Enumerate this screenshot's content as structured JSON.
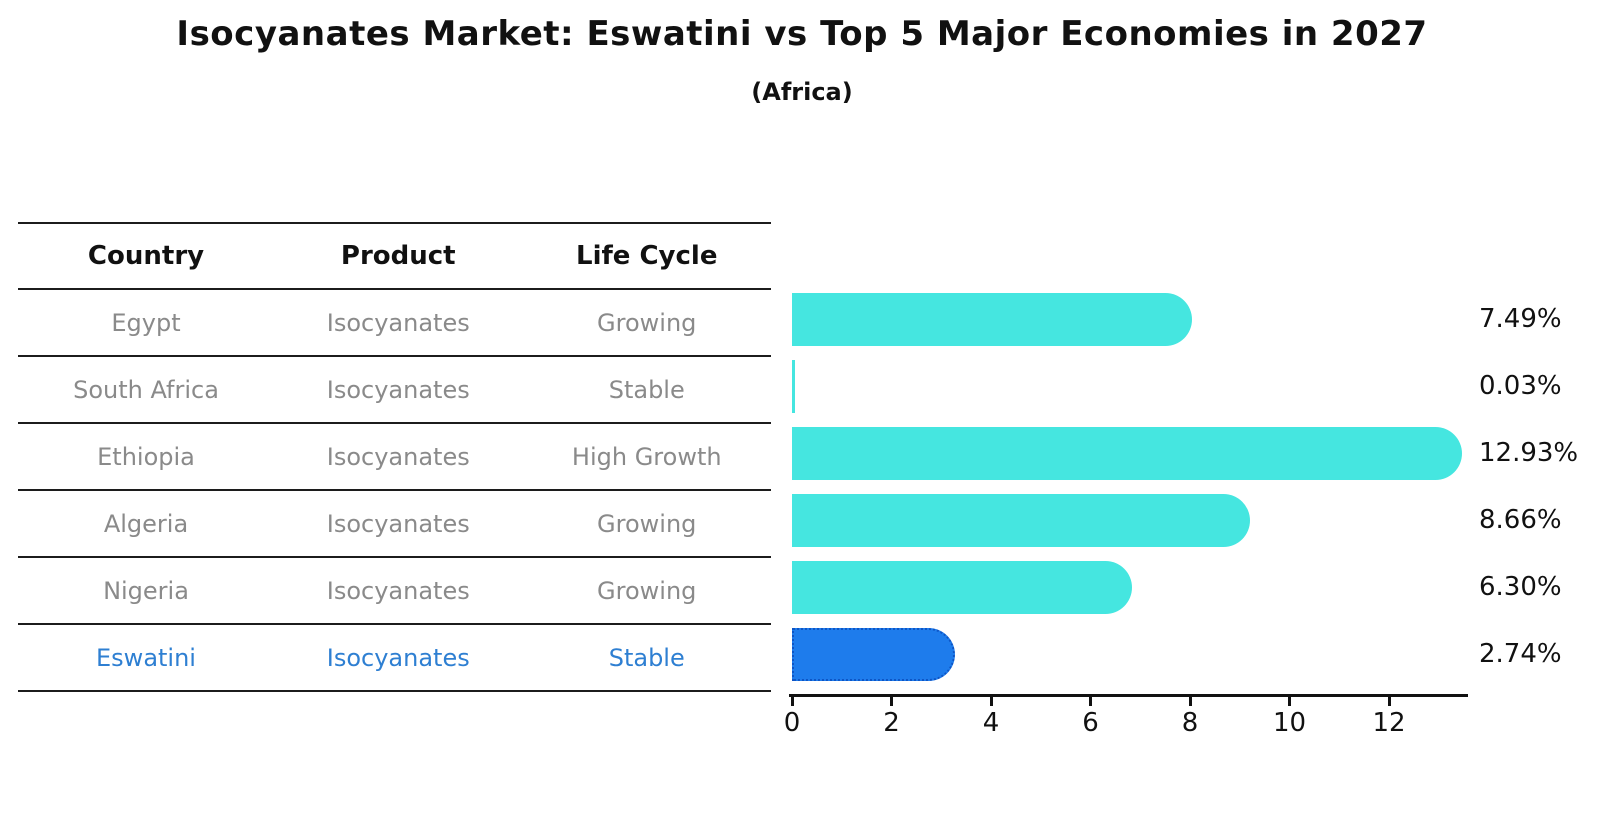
{
  "title": {
    "main": "Isocyanates Market: Eswatini vs Top 5 Major Economies in 2027",
    "sub": "(Africa)"
  },
  "table": {
    "headers": [
      "Country",
      "Product",
      "Life Cycle"
    ],
    "rows": [
      {
        "country": "Egypt",
        "product": "Isocyanates",
        "life_cycle": "Growing",
        "highlighted": false
      },
      {
        "country": "South Africa",
        "product": "Isocyanates",
        "life_cycle": "Stable",
        "highlighted": false
      },
      {
        "country": "Ethiopia",
        "product": "Isocyanates",
        "life_cycle": "High Growth",
        "highlighted": false
      },
      {
        "country": "Algeria",
        "product": "Isocyanates",
        "life_cycle": "Growing",
        "highlighted": false
      },
      {
        "country": "Nigeria",
        "product": "Isocyanates",
        "life_cycle": "Growing",
        "highlighted": false
      },
      {
        "country": "Eswatini",
        "product": "Isocyanates",
        "life_cycle": "Stable",
        "highlighted": true
      }
    ]
  },
  "chart_data": {
    "type": "bar",
    "orientation": "horizontal",
    "title": "Isocyanates Market: Eswatini vs Top 5 Major Economies in 2027",
    "subtitle": "(Africa)",
    "categories": [
      "Egypt",
      "South Africa",
      "Ethiopia",
      "Algeria",
      "Nigeria",
      "Eswatini"
    ],
    "values": [
      7.49,
      0.03,
      12.93,
      8.66,
      6.3,
      2.74
    ],
    "value_labels": [
      "7.49%",
      "0.03%",
      "12.93%",
      "8.66%",
      "6.30%",
      "2.74%"
    ],
    "x_ticks": [
      0,
      2,
      4,
      6,
      8,
      10,
      12
    ],
    "xlim": [
      0,
      13.6
    ],
    "xlabel": "",
    "ylabel": "",
    "grid": false,
    "legend": "none",
    "bar_color": "#45e6e0",
    "highlight_color": "#1e7cec",
    "highlight_border_color": "#0e55c5",
    "highlight_index": 5,
    "highlight_text_color": "#2e7fd2",
    "text_color": "#8a8a8a",
    "axis_color": "#111111"
  }
}
